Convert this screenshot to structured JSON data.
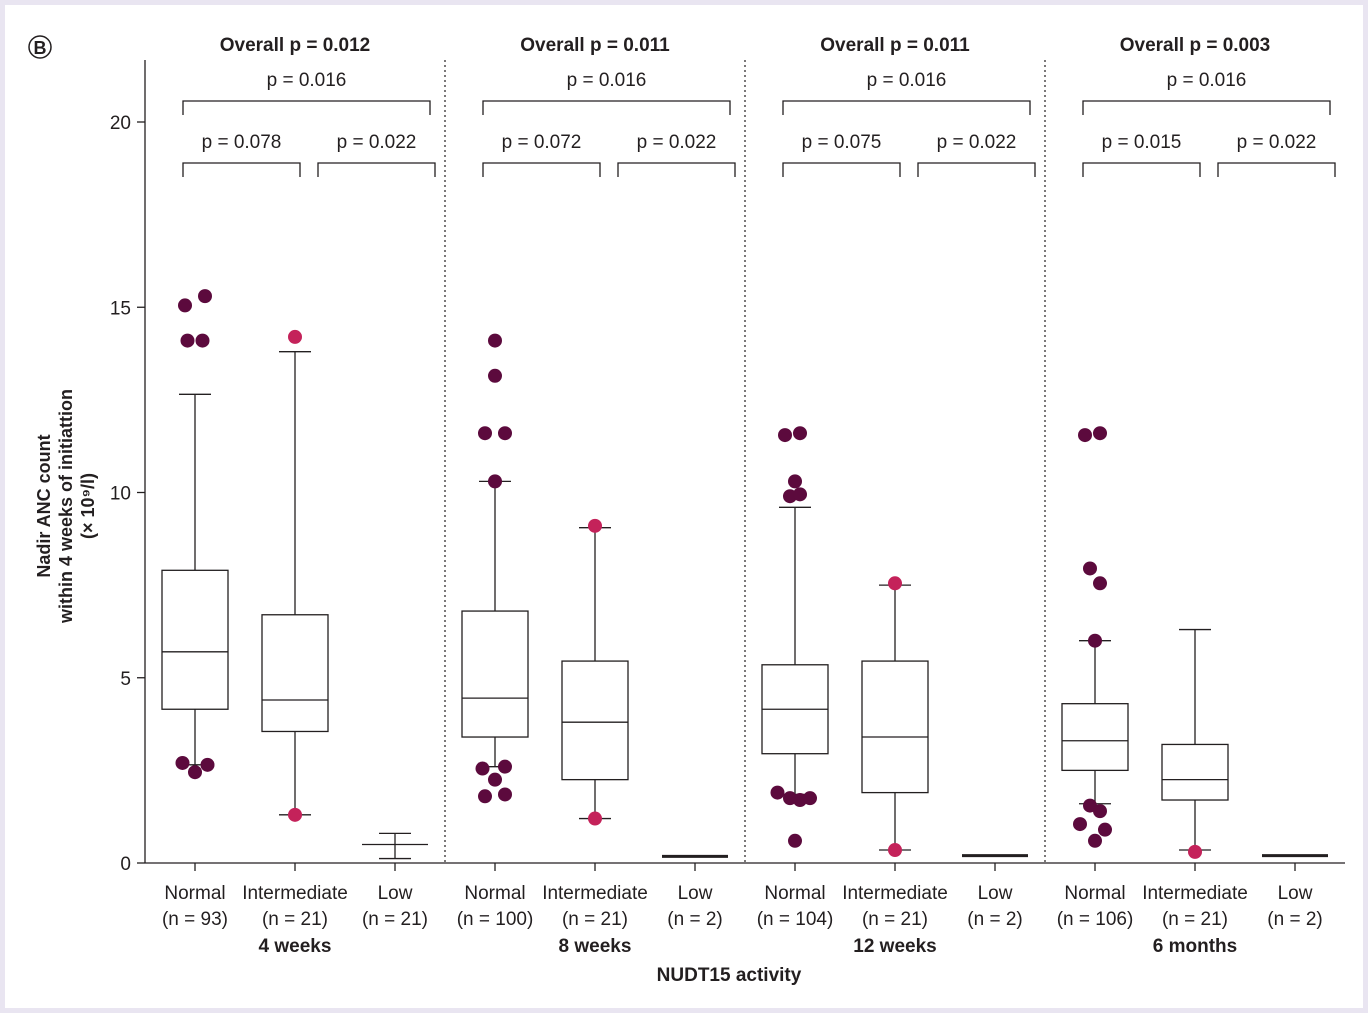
{
  "panel_label": "B",
  "colors": {
    "background_frame": "#e9e5f1",
    "outlier_normal": "#5c0a3d",
    "outlier_intermediate": "#c4225a",
    "ink": "#231f20"
  },
  "chart_data": {
    "type": "box",
    "ylabel": [
      "Nadir ANC count",
      "within 4 weeks of initiattion",
      "(× 10⁹/l)"
    ],
    "xlabel": "NUDT15 activity",
    "ylim": [
      0,
      21.5
    ],
    "yticks": [
      0,
      5,
      10,
      15,
      20
    ],
    "grid": false,
    "panels": [
      {
        "timepoint": "4 weeks",
        "overall_p": "Overall p = 0.012",
        "comparisons": [
          {
            "label": "p = 0.016",
            "from": 0,
            "to": 2,
            "level": 2
          },
          {
            "label": "p = 0.078",
            "from": 0,
            "to": 1,
            "level": 1
          },
          {
            "label": "p = 0.022",
            "from": 1,
            "to": 2,
            "level": 1
          }
        ],
        "groups": [
          {
            "name": "Normal",
            "n": "(n = 93)",
            "whisker_low": 2.65,
            "q1": 4.15,
            "median": 5.7,
            "q3": 7.9,
            "whisker_high": 12.65,
            "outliers": [
              [
                -0.2,
                15.05
              ],
              [
                0.2,
                15.3
              ],
              [
                -0.15,
                14.1
              ],
              [
                0.15,
                14.1
              ],
              [
                -0.25,
                2.7
              ],
              [
                0.0,
                2.45
              ],
              [
                0.25,
                2.65
              ]
            ]
          },
          {
            "name": "Intermediate",
            "n": "(n = 21)",
            "whisker_low": 1.3,
            "q1": 3.55,
            "median": 4.4,
            "q3": 6.7,
            "whisker_high": 13.8,
            "outliers": [
              [
                0,
                14.2
              ],
              [
                0,
                1.3
              ]
            ]
          },
          {
            "name": "Low",
            "n": "(n = 21)",
            "whisker_low": 0.12,
            "q1": 0.5,
            "median": 0.5,
            "q3": 0.5,
            "whisker_high": 0.8,
            "outliers": []
          }
        ]
      },
      {
        "timepoint": "8 weeks",
        "overall_p": "Overall p = 0.011",
        "comparisons": [
          {
            "label": "p = 0.016",
            "from": 0,
            "to": 2,
            "level": 2
          },
          {
            "label": "p = 0.072",
            "from": 0,
            "to": 1,
            "level": 1
          },
          {
            "label": "p = 0.022",
            "from": 1,
            "to": 2,
            "level": 1
          }
        ],
        "groups": [
          {
            "name": "Normal",
            "n": "(n = 100)",
            "whisker_low": 2.6,
            "q1": 3.4,
            "median": 4.45,
            "q3": 6.8,
            "whisker_high": 10.3,
            "outliers": [
              [
                0,
                14.1
              ],
              [
                0,
                13.15
              ],
              [
                -0.2,
                11.6
              ],
              [
                0.2,
                11.6
              ],
              [
                0,
                10.3
              ],
              [
                -0.25,
                2.55
              ],
              [
                0.2,
                2.6
              ],
              [
                0,
                2.25
              ],
              [
                -0.2,
                1.8
              ],
              [
                0.2,
                1.85
              ]
            ]
          },
          {
            "name": "Intermediate",
            "n": "(n = 21)",
            "whisker_low": 1.2,
            "q1": 2.25,
            "median": 3.8,
            "q3": 5.45,
            "whisker_high": 9.05,
            "outliers": [
              [
                0,
                9.1
              ],
              [
                0,
                1.2
              ]
            ]
          },
          {
            "name": "Low",
            "n": "(n = 2)",
            "whisker_low": 0.18,
            "q1": 0.18,
            "median": 0.18,
            "q3": 0.18,
            "whisker_high": 0.18,
            "outliers": []
          }
        ]
      },
      {
        "timepoint": "12 weeks",
        "overall_p": "Overall p = 0.011",
        "comparisons": [
          {
            "label": "p = 0.016",
            "from": 0,
            "to": 2,
            "level": 2
          },
          {
            "label": "p = 0.075",
            "from": 0,
            "to": 1,
            "level": 1
          },
          {
            "label": "p = 0.022",
            "from": 1,
            "to": 2,
            "level": 1
          }
        ],
        "groups": [
          {
            "name": "Normal",
            "n": "(n = 104)",
            "whisker_low": 1.85,
            "q1": 2.95,
            "median": 4.15,
            "q3": 5.35,
            "whisker_high": 9.6,
            "outliers": [
              [
                -0.2,
                11.55
              ],
              [
                0.1,
                11.6
              ],
              [
                0,
                10.3
              ],
              [
                -0.1,
                9.9
              ],
              [
                0.1,
                9.95
              ],
              [
                -0.35,
                1.9
              ],
              [
                -0.1,
                1.75
              ],
              [
                0.1,
                1.7
              ],
              [
                0.3,
                1.75
              ],
              [
                0,
                0.6
              ]
            ]
          },
          {
            "name": "Intermediate",
            "n": "(n = 21)",
            "whisker_low": 0.35,
            "q1": 1.9,
            "median": 3.4,
            "q3": 5.45,
            "whisker_high": 7.5,
            "outliers": [
              [
                0,
                7.55
              ],
              [
                0,
                0.35
              ]
            ]
          },
          {
            "name": "Low",
            "n": "(n = 2)",
            "whisker_low": 0.2,
            "q1": 0.2,
            "median": 0.2,
            "q3": 0.2,
            "whisker_high": 0.2,
            "outliers": []
          }
        ]
      },
      {
        "timepoint": "6 months",
        "overall_p": "Overall p = 0.003",
        "comparisons": [
          {
            "label": "p = 0.016",
            "from": 0,
            "to": 2,
            "level": 2
          },
          {
            "label": "p = 0.015",
            "from": 0,
            "to": 1,
            "level": 1
          },
          {
            "label": "p = 0.022",
            "from": 1,
            "to": 2,
            "level": 1
          }
        ],
        "groups": [
          {
            "name": "Normal",
            "n": "(n = 106)",
            "whisker_low": 1.6,
            "q1": 2.5,
            "median": 3.3,
            "q3": 4.3,
            "whisker_high": 6.0,
            "outliers": [
              [
                -0.2,
                11.55
              ],
              [
                0.1,
                11.6
              ],
              [
                -0.1,
                7.95
              ],
              [
                0.1,
                7.55
              ],
              [
                0,
                6.0
              ],
              [
                -0.1,
                1.55
              ],
              [
                0.1,
                1.4
              ],
              [
                -0.3,
                1.05
              ],
              [
                0.2,
                0.9
              ],
              [
                0,
                0.6
              ]
            ]
          },
          {
            "name": "Intermediate",
            "n": "(n = 21)",
            "whisker_low": 0.35,
            "q1": 1.7,
            "median": 2.25,
            "q3": 3.2,
            "whisker_high": 6.3,
            "outliers": [
              [
                0,
                0.3
              ]
            ]
          },
          {
            "name": "Low",
            "n": "(n = 2)",
            "whisker_low": 0.2,
            "q1": 0.2,
            "median": 0.2,
            "q3": 0.2,
            "whisker_high": 0.2,
            "outliers": []
          }
        ]
      }
    ]
  }
}
